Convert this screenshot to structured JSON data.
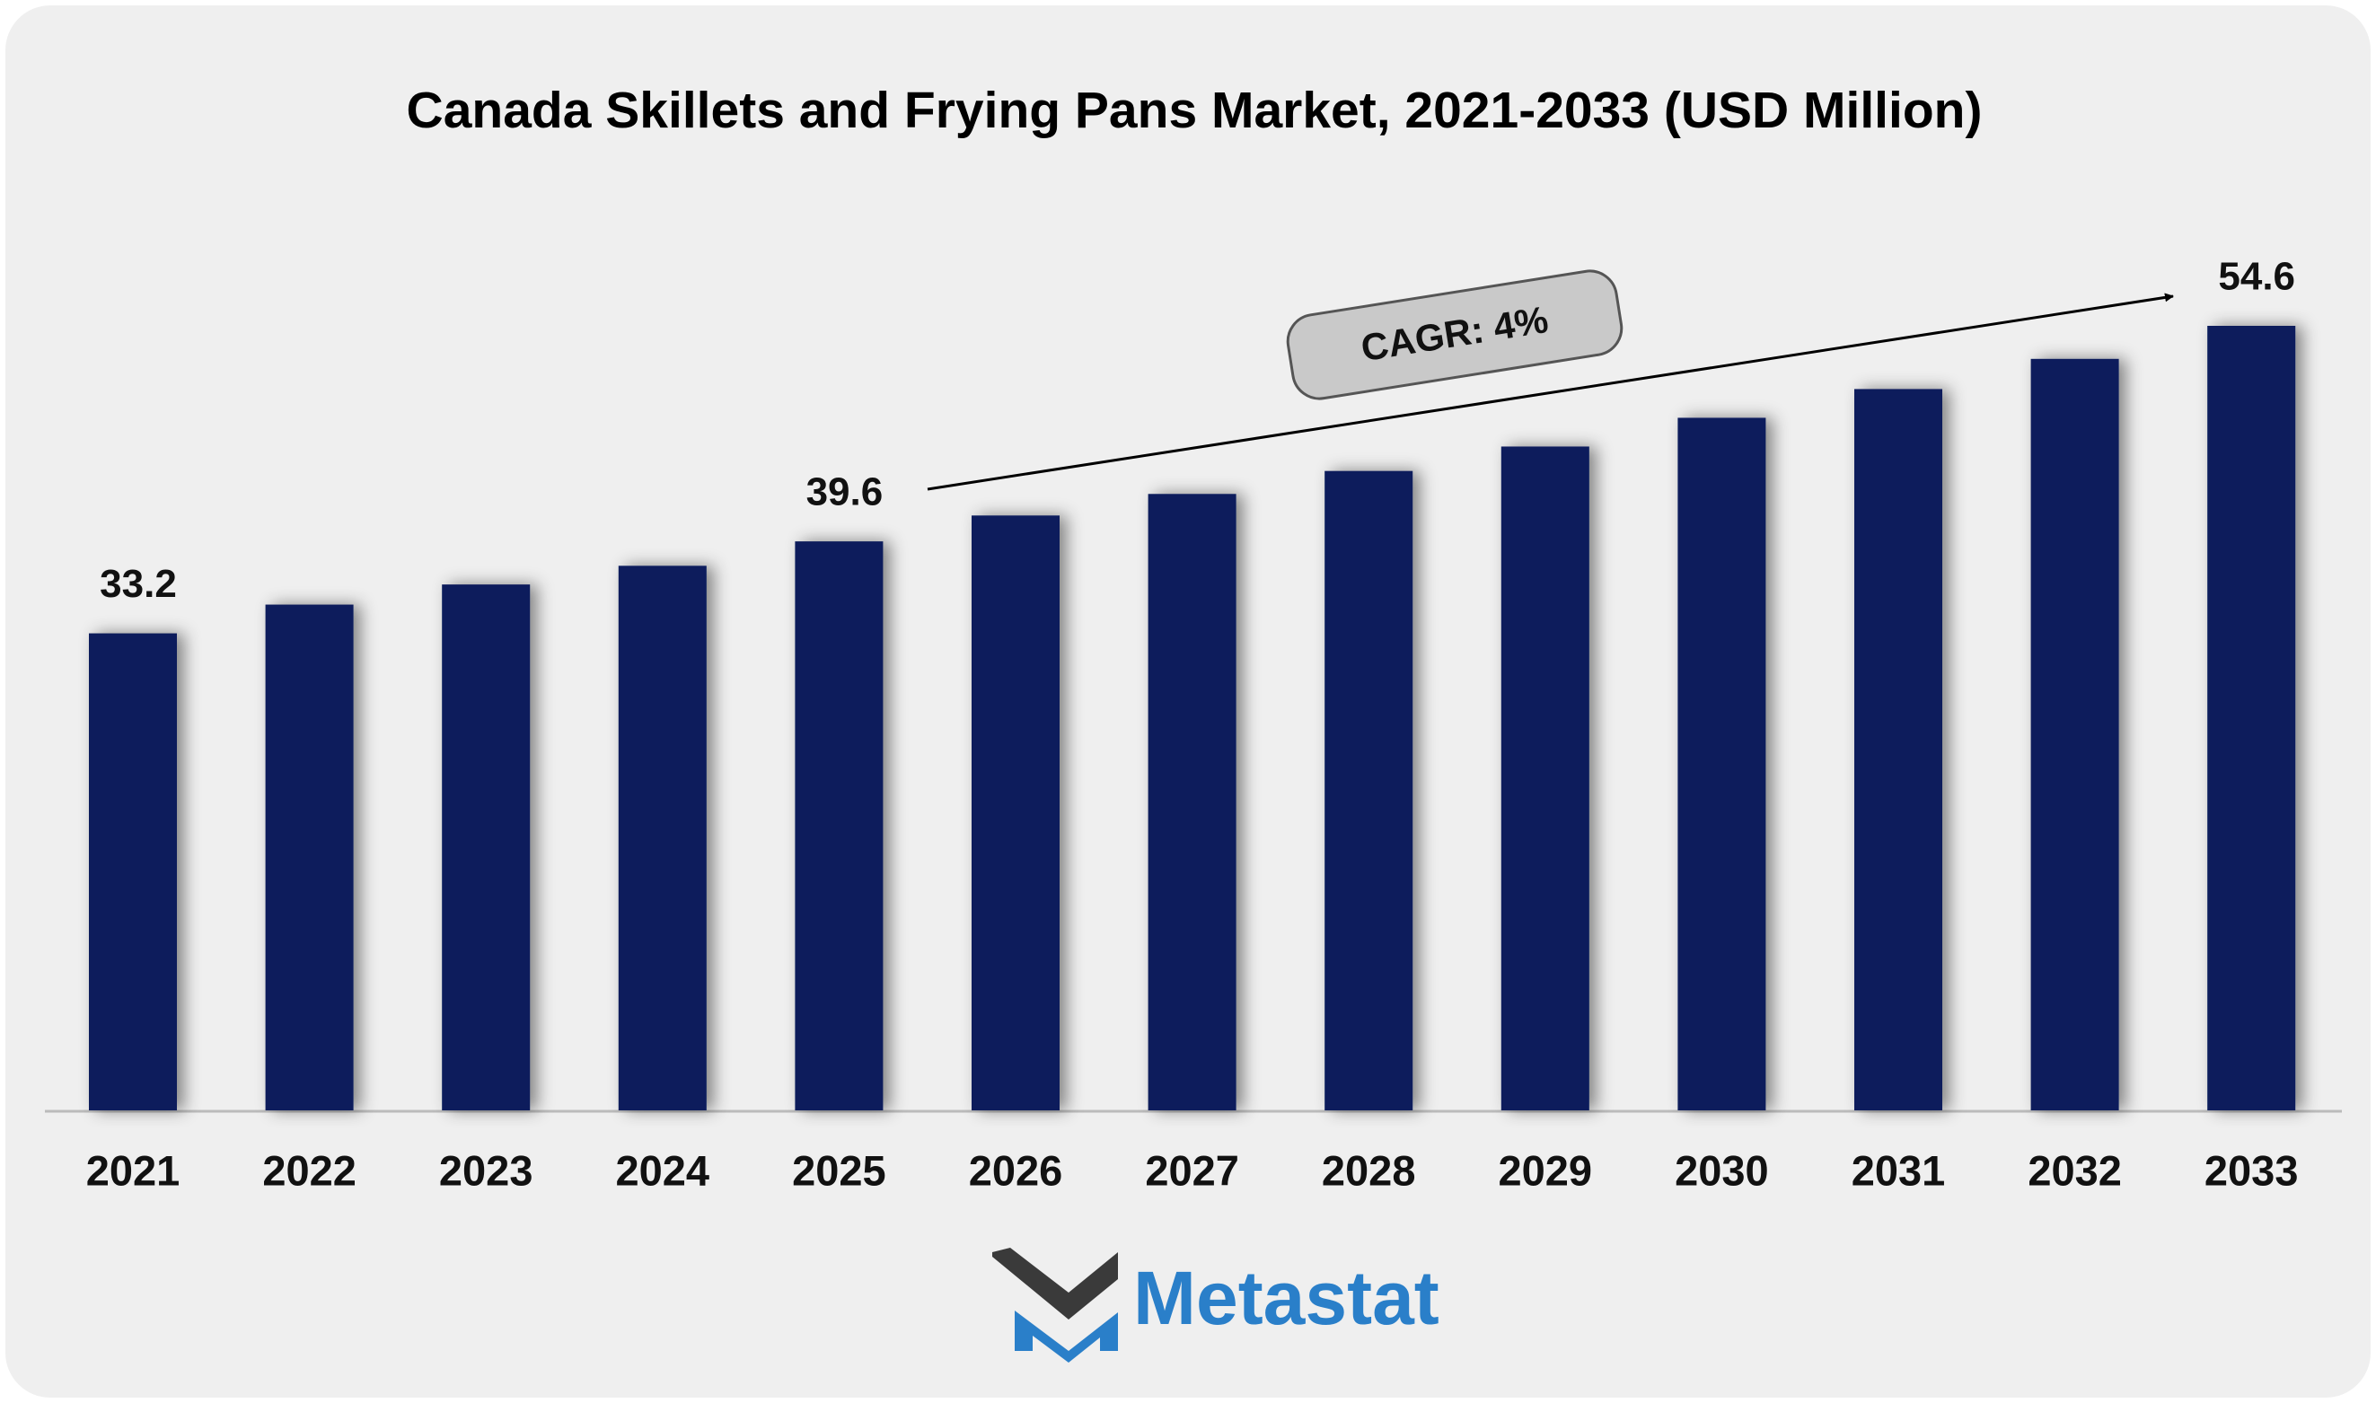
{
  "chart_data": {
    "type": "bar",
    "title": "Canada Skillets and Frying Pans Market, 2021-2033 (USD Million)",
    "categories": [
      "2021",
      "2022",
      "2023",
      "2024",
      "2025",
      "2026",
      "2027",
      "2028",
      "2029",
      "2030",
      "2031",
      "2032",
      "2033"
    ],
    "values": [
      33.2,
      35.2,
      36.6,
      37.9,
      39.6,
      41.4,
      42.9,
      44.5,
      46.2,
      48.2,
      50.2,
      52.3,
      54.6
    ],
    "color": "#0b1f5c",
    "annotation": "CAGR: 4%",
    "brand": "Metastat"
  }
}
